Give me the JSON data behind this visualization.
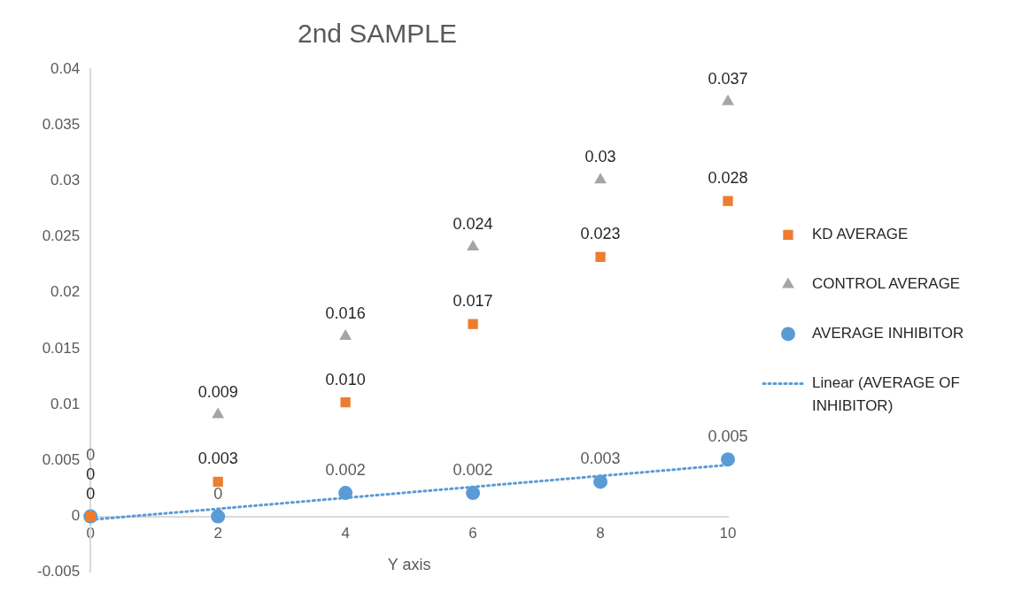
{
  "chart_data": {
    "type": "scatter",
    "title": "2nd SAMPLE",
    "xlabel": "Y axis",
    "xlim": [
      0,
      10
    ],
    "xticks": [
      0,
      2,
      4,
      6,
      8,
      10
    ],
    "ylim": [
      -0.005,
      0.04
    ],
    "yticks": [
      -0.005,
      0,
      0.005,
      0.01,
      0.015,
      0.02,
      0.025,
      0.03,
      0.035,
      0.04
    ],
    "grid": false,
    "legend": "right",
    "series": [
      {
        "name": "KD AVERAGE",
        "color": "#ed7d31",
        "marker": "square",
        "x": [
          0,
          2,
          4,
          6,
          8,
          10
        ],
        "values": [
          0,
          0.0031,
          0.0102,
          0.0172,
          0.0232,
          0.0282
        ],
        "value_labels": [
          "0",
          "0.003",
          "0.010",
          "0.017",
          "0.023",
          "0.028"
        ]
      },
      {
        "name": "CONTROL AVERAGE",
        "color": "#a5a5a5",
        "marker": "triangle",
        "x": [
          0,
          2,
          4,
          6,
          8,
          10
        ],
        "values": [
          0,
          0.0091,
          0.0161,
          0.0241,
          0.0301,
          0.0371
        ],
        "value_labels": [
          "0",
          "0.009",
          "0.016",
          "0.024",
          "0.03",
          "0.037"
        ]
      },
      {
        "name": "AVERAGE INHIBITOR",
        "color": "#5b9bd5",
        "marker": "circle",
        "x": [
          0,
          2,
          4,
          6,
          8,
          10
        ],
        "values": [
          0,
          0,
          0.0021,
          0.0021,
          0.0031,
          0.0051
        ],
        "value_labels": [
          "0",
          "0",
          "0.002",
          "0.002",
          "0.003",
          "0.005"
        ]
      },
      {
        "name": "Linear (AVERAGE OF INHIBITOR)",
        "type": "line",
        "color": "#5b9bd5",
        "marker": "none",
        "line_style": "dotted",
        "x": [
          0,
          10
        ],
        "values": [
          -0.0003,
          0.0046
        ]
      }
    ]
  }
}
